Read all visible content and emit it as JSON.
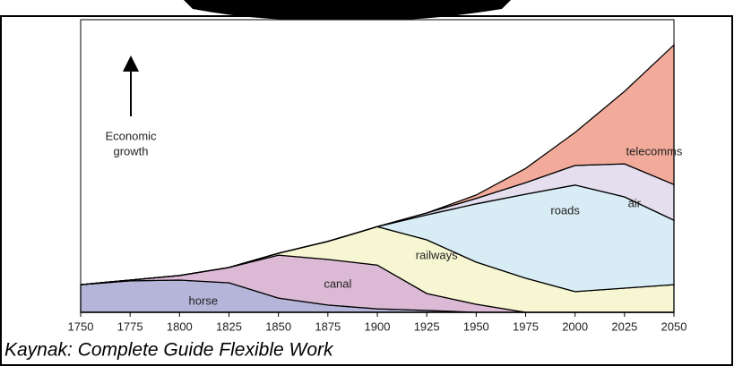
{
  "chart_data": {
    "type": "stacked_area",
    "annotation": [
      "Economic",
      "growth"
    ],
    "source": "Kaynak: Complete Guide Flexible Work",
    "x": [
      1750,
      1775,
      1800,
      1825,
      1850,
      1875,
      1900,
      1925,
      1950,
      1975,
      2000,
      2025,
      2050
    ],
    "xlim": [
      1750,
      2050
    ],
    "xticks": [
      1750,
      1775,
      1800,
      1825,
      1850,
      1875,
      1900,
      1925,
      1950,
      1975,
      2000,
      2025,
      2050
    ],
    "ylim": [
      0,
      109
    ],
    "series": [
      {
        "name": "horse",
        "color": "#b5b5da",
        "values": [
          10.3,
          11.7,
          12,
          11,
          5.3,
          2.7,
          1.3,
          0.7,
          0,
          0,
          0,
          0,
          0
        ]
      },
      {
        "name": "canal",
        "color": "#dcbad6",
        "values": [
          0,
          0.3,
          1.7,
          5.7,
          16,
          17,
          16.3,
          6.3,
          3,
          0,
          0,
          0,
          0
        ]
      },
      {
        "name": "railways",
        "color": "#f6f6d2",
        "values": [
          0,
          0,
          0,
          0,
          0.7,
          6.7,
          14.3,
          20,
          15.7,
          12.7,
          7.7,
          9,
          10.3
        ]
      },
      {
        "name": "roads",
        "color": "#d8ecf5",
        "values": [
          0,
          0,
          0,
          0,
          0,
          0,
          0,
          9.3,
          21.7,
          31.3,
          39.7,
          34,
          24
        ]
      },
      {
        "name": "air",
        "color": "#e4deee",
        "values": [
          0,
          0,
          0,
          0,
          0,
          0,
          0,
          0.7,
          2,
          4.3,
          7.3,
          12.3,
          13.3
        ]
      },
      {
        "name": "telecomms",
        "color": "#f2ab9b",
        "values": [
          0,
          0,
          0,
          0,
          0,
          0,
          0,
          0,
          1.3,
          5.3,
          12.3,
          27,
          52
        ]
      }
    ]
  }
}
